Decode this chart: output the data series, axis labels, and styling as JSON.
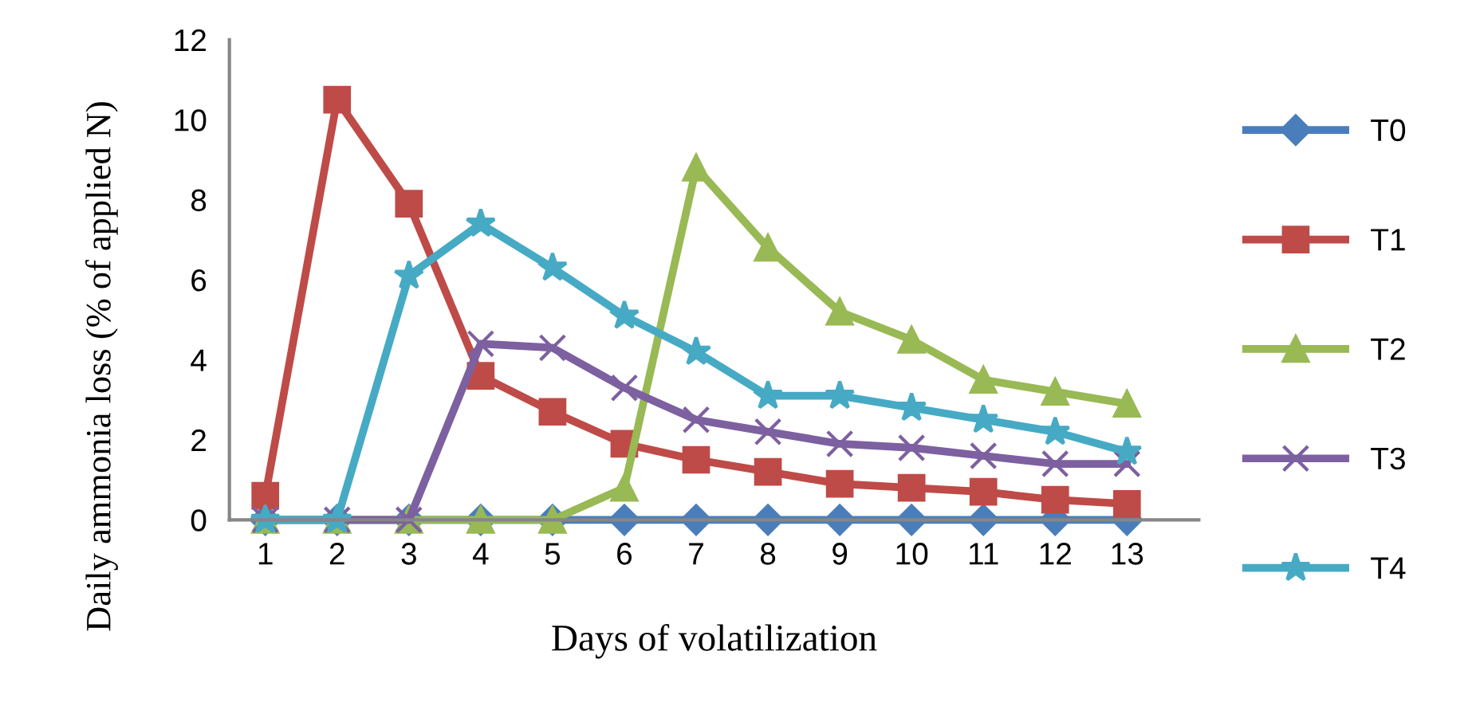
{
  "chart_data": {
    "type": "line",
    "xlabel": "Days of volatilization",
    "ylabel": "Daily ammonia loss (% of applied N)",
    "categories": [
      "1",
      "2",
      "3",
      "4",
      "5",
      "6",
      "7",
      "8",
      "9",
      "10",
      "11",
      "12",
      "13"
    ],
    "ylim": [
      0,
      12
    ],
    "yticks": [
      0,
      2,
      4,
      6,
      8,
      10,
      12
    ],
    "grid": false,
    "legend": "right",
    "series": [
      {
        "name": "T0",
        "color": "#4a7ebb",
        "marker": "diamond",
        "values": [
          0,
          0,
          0,
          0,
          0,
          0,
          0,
          0,
          0,
          0,
          0,
          0,
          0
        ]
      },
      {
        "name": "T1",
        "color": "#be4b48",
        "marker": "square",
        "values": [
          0.6,
          10.5,
          7.9,
          3.6,
          2.7,
          1.9,
          1.5,
          1.2,
          0.9,
          0.8,
          0.7,
          0.5,
          0.4
        ]
      },
      {
        "name": "T2",
        "color": "#98b954",
        "marker": "triangle",
        "values": [
          0,
          0,
          0,
          0,
          0,
          0.8,
          8.8,
          6.8,
          5.2,
          4.5,
          3.5,
          3.2,
          2.9
        ]
      },
      {
        "name": "T3",
        "color": "#7d60a0",
        "marker": "cross",
        "values": [
          0,
          0,
          0,
          4.4,
          4.3,
          3.3,
          2.5,
          2.2,
          1.9,
          1.8,
          1.6,
          1.4,
          1.4
        ]
      },
      {
        "name": "T4",
        "color": "#46aac5",
        "marker": "star",
        "values": [
          0,
          0,
          6.1,
          7.4,
          6.3,
          5.1,
          4.2,
          3.1,
          3.1,
          2.8,
          2.5,
          2.2,
          1.7
        ]
      }
    ]
  }
}
